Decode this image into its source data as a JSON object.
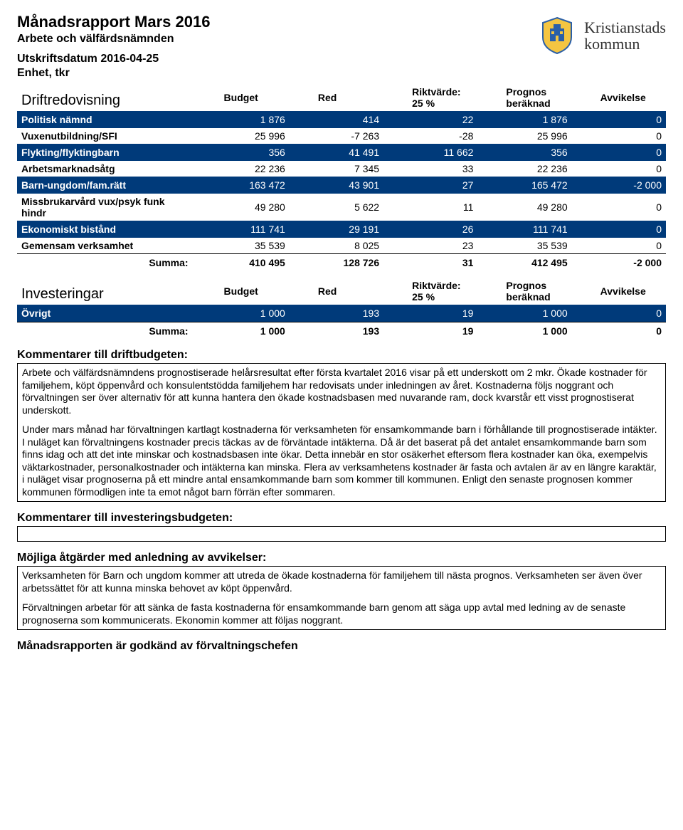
{
  "header": {
    "title": "Månadsrapport Mars 2016",
    "subtitle1": "Arbete och välfärdsnämnden",
    "subtitle2": "Utskriftsdatum 2016-04-25",
    "subtitle3": "Enhet, tkr",
    "logo_line1": "Kristianstads",
    "logo_line2": "kommun"
  },
  "drift": {
    "section_label": "Driftredovisning",
    "columns": [
      "Budget",
      "Red",
      "Riktvärde:\n25 %",
      "Prognos\nberäknad",
      "Avvikelse"
    ],
    "rows": [
      {
        "label": "Politisk nämnd",
        "values": [
          "1 876",
          "414",
          "22",
          "1 876",
          "0"
        ],
        "blue": true
      },
      {
        "label": "Vuxenutbildning/SFI",
        "values": [
          "25 996",
          "-7 263",
          "-28",
          "25 996",
          "0"
        ],
        "blue": false
      },
      {
        "label": "Flykting/flyktingbarn",
        "values": [
          "356",
          "41 491",
          "11 662",
          "356",
          "0"
        ],
        "blue": true
      },
      {
        "label": "Arbetsmarknadsåtg",
        "values": [
          "22 236",
          "7 345",
          "33",
          "22 236",
          "0"
        ],
        "blue": false
      },
      {
        "label": "Barn-ungdom/fam.rätt",
        "values": [
          "163 472",
          "43 901",
          "27",
          "165 472",
          "-2 000"
        ],
        "blue": true
      },
      {
        "label": "Missbrukarvård vux/psyk funk hindr",
        "values": [
          "49 280",
          "5 622",
          "11",
          "49 280",
          "0"
        ],
        "blue": false
      },
      {
        "label": "Ekonomiskt bistånd",
        "values": [
          "111 741",
          "29 191",
          "26",
          "111 741",
          "0"
        ],
        "blue": true
      },
      {
        "label": "Gemensam verksamhet",
        "values": [
          "35 539",
          "8 025",
          "23",
          "35 539",
          "0"
        ],
        "blue": false
      }
    ],
    "sum_label": "Summa:",
    "sum_values": [
      "410 495",
      "128 726",
      "31",
      "412 495",
      "-2 000"
    ]
  },
  "invest": {
    "section_label": "Investeringar",
    "columns": [
      "Budget",
      "Red",
      "Riktvärde:\n25 %",
      "Prognos\nberäknad",
      "Avvikelse"
    ],
    "rows": [
      {
        "label": "Övrigt",
        "values": [
          "1 000",
          "193",
          "19",
          "1 000",
          "0"
        ],
        "blue": true
      }
    ],
    "sum_label": "Summa:",
    "sum_values": [
      "1 000",
      "193",
      "19",
      "1 000",
      "0"
    ]
  },
  "comments": {
    "drift_heading": "Kommentarer till driftbudgeten:",
    "drift_paragraphs": [
      "Arbete och välfärdsnämndens prognostiserade helårsresultat efter första kvartalet 2016 visar på ett underskott om 2 mkr. Ökade kostnader för familjehem, köpt öppenvård och konsulentstödda familjehem har redovisats under inledningen av året. Kostnaderna följs noggrant och förvaltningen ser över alternativ för att kunna hantera den ökade kostnadsbasen med nuvarande ram, dock kvarstår ett visst prognostiserat underskott.",
      "Under mars månad har förvaltningen kartlagt kostnaderna för verksamheten för ensamkommande barn i förhållande till prognostiserade intäkter. I nuläget kan förvaltningens kostnader precis täckas av de förväntade intäkterna. Då är det baserat på det antalet ensamkommande barn som finns idag och att det inte minskar och kostnadsbasen inte ökar. Detta innebär en stor osäkerhet eftersom flera kostnader kan öka, exempelvis väktarkostnader, personalkostnader och intäkterna kan minska. Flera av verksamhetens kostnader är fasta och avtalen är av en längre karaktär, i nuläget visar prognoserna på ett mindre antal ensamkommande barn som kommer till kommunen. Enligt den senaste prognosen kommer kommunen förmodligen inte ta emot något barn förrän efter sommaren."
    ],
    "invest_heading": "Kommentarer till investeringsbudgeten:",
    "invest_paragraphs": [],
    "actions_heading": "Möjliga åtgärder med anledning av avvikelser:",
    "actions_paragraphs": [
      "Verksamheten för Barn och ungdom kommer att utreda de ökade kostnaderna för familjehem till nästa prognos. Verksamheten ser även över arbetssättet för att kunna minska behovet av köpt öppenvård.",
      "Förvaltningen arbetar för att sänka de fasta kostnaderna för ensamkommande barn genom att säga upp avtal med ledning av de senaste prognoserna som kommunicerats. Ekonomin kommer att följas noggrant."
    ],
    "approved_heading": "Månadsrapporten är godkänd av förvaltningschefen"
  },
  "colors": {
    "row_blue_bg": "#003a7a",
    "row_blue_fg": "#ffffff"
  }
}
